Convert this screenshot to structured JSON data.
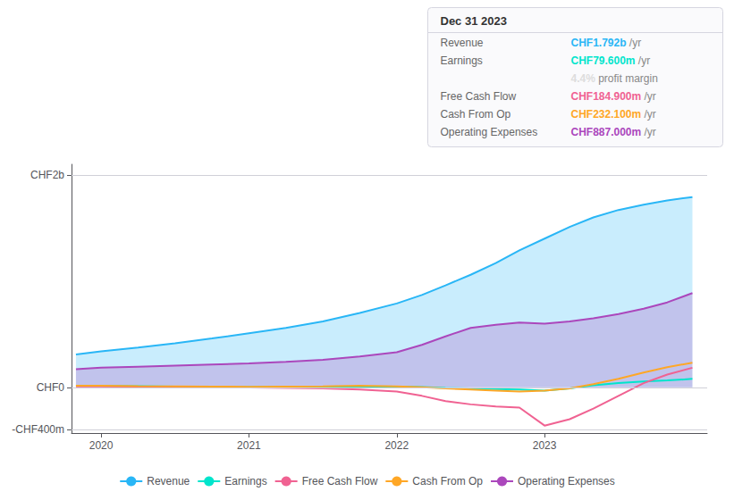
{
  "chart_data": {
    "type": "line",
    "annotations": {
      "title": "Dec 31 2023",
      "rows": [
        {
          "label": "Revenue",
          "value": "CHF1.792b",
          "unit": "/yr",
          "color": "#29b6f6"
        },
        {
          "label": "Earnings",
          "value": "CHF79.600m",
          "unit": "/yr",
          "color": "#00e5cc"
        },
        {
          "value": "4.4%",
          "unit": "profit margin",
          "color": "#dddddd"
        },
        {
          "label": "Free Cash Flow",
          "value": "CHF184.900m",
          "unit": "/yr",
          "color": "#f06292"
        },
        {
          "label": "Cash From Op",
          "value": "CHF232.100m",
          "unit": "/yr",
          "color": "#ffa726"
        },
        {
          "label": "Operating Expenses",
          "value": "CHF887.000m",
          "unit": "/yr",
          "color": "#ab47bc"
        }
      ]
    },
    "x": [
      2019.83,
      2020.0,
      2020.25,
      2020.5,
      2020.75,
      2021.0,
      2021.25,
      2021.5,
      2021.75,
      2022.0,
      2022.17,
      2022.33,
      2022.5,
      2022.67,
      2022.83,
      2023.0,
      2023.17,
      2023.33,
      2023.5,
      2023.67,
      2023.83,
      2024.0
    ],
    "series": [
      {
        "name": "Revenue",
        "color": "#29b6f6",
        "type": "area",
        "values": [
          310,
          340,
          375,
          415,
          460,
          510,
          560,
          620,
          700,
          790,
          870,
          960,
          1060,
          1170,
          1290,
          1400,
          1510,
          1600,
          1670,
          1720,
          1760,
          1792
        ]
      },
      {
        "name": "Earnings",
        "color": "#00e5cc",
        "type": "line",
        "values": [
          15,
          15,
          12,
          8,
          5,
          2,
          5,
          8,
          10,
          8,
          2,
          -5,
          -10,
          -15,
          -20,
          -30,
          -10,
          20,
          40,
          55,
          65,
          79.6
        ]
      },
      {
        "name": "Free Cash Flow",
        "color": "#f06292",
        "type": "line",
        "values": [
          10,
          10,
          8,
          5,
          2,
          -2,
          -5,
          -10,
          -20,
          -40,
          -80,
          -130,
          -160,
          -180,
          -190,
          -360,
          -300,
          -200,
          -80,
          40,
          120,
          184.9
        ]
      },
      {
        "name": "Cash From Op",
        "color": "#ffa726",
        "type": "line",
        "values": [
          15,
          15,
          12,
          10,
          8,
          5,
          8,
          10,
          15,
          10,
          0,
          -10,
          -20,
          -30,
          -40,
          -30,
          -10,
          30,
          80,
          140,
          190,
          232.1
        ]
      },
      {
        "name": "Operating Expenses",
        "color": "#ab47bc",
        "type": "area",
        "values": [
          170,
          185,
          195,
          205,
          215,
          225,
          240,
          260,
          290,
          330,
          400,
          480,
          560,
          590,
          610,
          600,
          620,
          650,
          690,
          740,
          800,
          887
        ]
      }
    ],
    "xlim": [
      2019.8,
      2024.1
    ],
    "xticks": [
      2020,
      2021,
      2022,
      2023
    ],
    "ylim": [
      -430,
      2100
    ],
    "yticks": [
      {
        "value": 2000,
        "label": "CHF2b"
      },
      {
        "value": 0,
        "label": "CHF0"
      },
      {
        "value": -400,
        "label": "-CHF400m"
      }
    ],
    "grid": true,
    "legend": "bottom"
  }
}
